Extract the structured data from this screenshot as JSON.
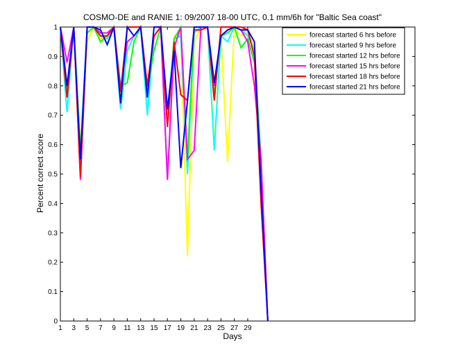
{
  "chart_data": {
    "type": "line",
    "title": "COSMO-DE and RANIE 1: 09/2007 18-00 UTC, 0.1 mm/6h for \"Baltic Sea coast\"",
    "xlabel": "Days",
    "ylabel": "Percent correct score",
    "xlim": [
      1,
      54
    ],
    "ylim": [
      0,
      1
    ],
    "xticks": [
      1,
      3,
      5,
      7,
      9,
      11,
      13,
      15,
      17,
      19,
      21,
      23,
      25,
      27,
      29
    ],
    "yticks": [
      0,
      0.1,
      0.2,
      0.3,
      0.4,
      0.5,
      0.6,
      0.7,
      0.8,
      0.9,
      1
    ],
    "grid": false,
    "legend_position": "top-right",
    "x": [
      1,
      2,
      3,
      4,
      5,
      6,
      7,
      8,
      9,
      10,
      11,
      12,
      13,
      14,
      15,
      16,
      17,
      18,
      19,
      20,
      21,
      22,
      23,
      24,
      25,
      26,
      27,
      28,
      29,
      30,
      31,
      32
    ],
    "series": [
      {
        "name": "forecast started 6 hrs before",
        "color": "#ffff00",
        "values": [
          1,
          0.78,
          1,
          0.6,
          0.95,
          1,
          0.96,
          0.97,
          1,
          0.77,
          0.95,
          0.97,
          1,
          0.8,
          0.97,
          1,
          0.68,
          0.97,
          0.98,
          0.22,
          0.95,
          1,
          1,
          0.6,
          0.97,
          0.54,
          1,
          0.97,
          0.98,
          0.93,
          0.55,
          0
        ]
      },
      {
        "name": "forecast started 9 hrs before",
        "color": "#00ffff",
        "values": [
          1,
          0.71,
          1,
          0.58,
          1,
          1,
          0.97,
          0.96,
          1,
          0.72,
          0.92,
          0.97,
          1,
          0.7,
          0.97,
          1,
          0.7,
          0.96,
          0.97,
          0.5,
          0.98,
          1,
          1,
          0.58,
          0.97,
          0.95,
          1,
          0.99,
          0.97,
          0.92,
          0.55,
          0
        ]
      },
      {
        "name": "forecast started 12 hrs before",
        "color": "#00ff00",
        "values": [
          1,
          0.79,
          1,
          0.57,
          0.98,
          1,
          0.95,
          0.97,
          1,
          0.8,
          0.81,
          0.95,
          1,
          0.79,
          0.92,
          1,
          0.48,
          0.96,
          1,
          0.55,
          1,
          1,
          1,
          0.77,
          0.97,
          0.98,
          1,
          0.93,
          0.96,
          0.88,
          0.55,
          0
        ]
      },
      {
        "name": "forecast started 15 hrs before",
        "color": "#ff00ff",
        "values": [
          1,
          0.88,
          1,
          0.48,
          1,
          1,
          0.98,
          0.98,
          1,
          0.79,
          0.95,
          0.97,
          1,
          0.8,
          0.97,
          1,
          0.48,
          0.93,
          1,
          0.55,
          0.58,
          1,
          1,
          0.8,
          0.97,
          0.99,
          1,
          0.99,
          0.95,
          0.8,
          0.55,
          0
        ]
      },
      {
        "name": "forecast started 18 hrs before",
        "color": "#ff0000",
        "values": [
          1,
          0.76,
          1,
          0.49,
          1,
          1,
          0.97,
          0.97,
          1,
          0.78,
          1,
          1,
          1,
          0.8,
          0.97,
          1,
          0.66,
          0.95,
          0.77,
          0.75,
          0.99,
          0.99,
          1,
          0.75,
          1,
          1,
          1,
          1,
          0.99,
          0.9,
          0.4,
          0
        ]
      },
      {
        "name": "forecast started 21 hrs before",
        "color": "#0000ff",
        "values": [
          1,
          0.8,
          1,
          0.55,
          1,
          1,
          0.99,
          0.94,
          1,
          0.74,
          1,
          0.97,
          1,
          0.76,
          1,
          1,
          0.72,
          0.92,
          0.52,
          0.75,
          1,
          1,
          1,
          0.81,
          0.97,
          0.99,
          1,
          0.99,
          0.99,
          0.95,
          0.45,
          0
        ]
      }
    ]
  }
}
